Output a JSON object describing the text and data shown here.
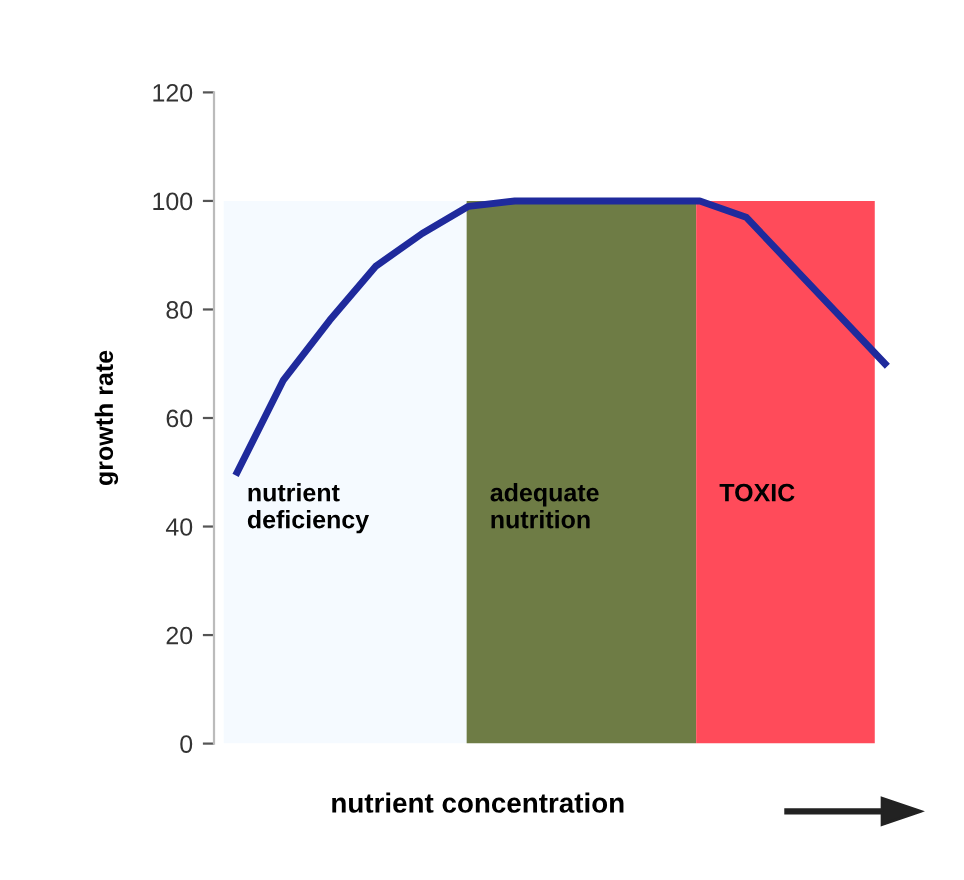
{
  "chart_data": {
    "type": "line",
    "xlabel": "nutrient concentration",
    "ylabel": "growth rate",
    "categories": [
      null,
      null,
      null,
      null,
      null,
      null,
      null,
      null,
      null,
      null,
      null,
      null,
      null,
      null,
      null
    ],
    "series": [
      {
        "color": "#1f2a9c",
        "values": [
          50,
          67,
          78,
          88,
          94,
          99,
          100,
          100,
          100,
          100,
          100,
          97,
          88,
          79,
          70
        ]
      }
    ],
    "annotations": [
      "nutrient\ndeficiency",
      "adequate\nnutrition",
      "TOXIC"
    ],
    "ylim": [
      0,
      120
    ],
    "yticks": [
      0,
      20,
      40,
      60,
      80,
      100,
      120
    ],
    "tick_labels": "y",
    "grid": false,
    "legend": false,
    "marker": "none",
    "line_style": "solid"
  }
}
